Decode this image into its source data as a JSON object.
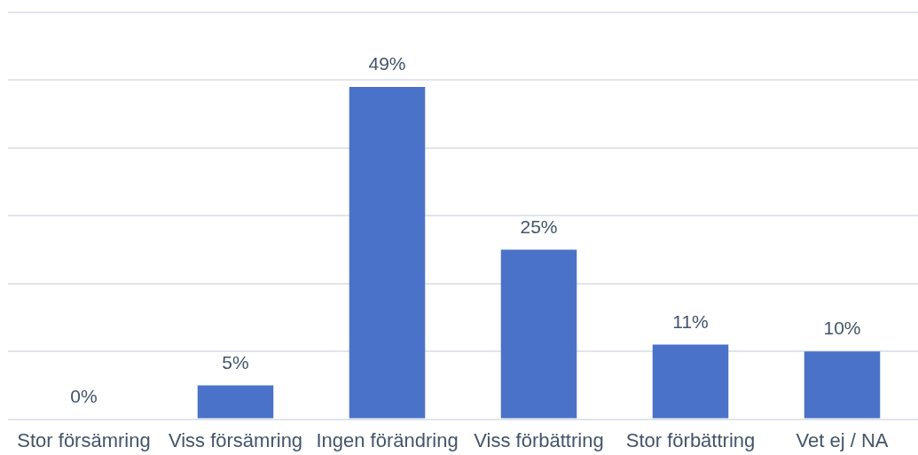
{
  "chart_data": {
    "type": "bar",
    "categories": [
      "Stor försämring",
      "Viss försämring",
      "Ingen förändring",
      "Viss förbättring",
      "Stor förbättring",
      "Vet ej / NA"
    ],
    "values": [
      0,
      5,
      49,
      25,
      11,
      10
    ],
    "value_labels": [
      "0%",
      "5%",
      "49%",
      "25%",
      "11%",
      "10%"
    ],
    "color": "#4a72c8",
    "ylim": [
      0,
      60
    ],
    "yticks": [
      {
        "value": 0,
        "label": null
      },
      {
        "value": 10,
        "label": null
      },
      {
        "value": 20,
        "label": null
      },
      {
        "value": 30,
        "label": null
      },
      {
        "value": 40,
        "label": null
      },
      {
        "value": 50,
        "label": null
      },
      {
        "value": 60,
        "label": null
      }
    ],
    "tick_labels": "x",
    "grid": "y"
  }
}
